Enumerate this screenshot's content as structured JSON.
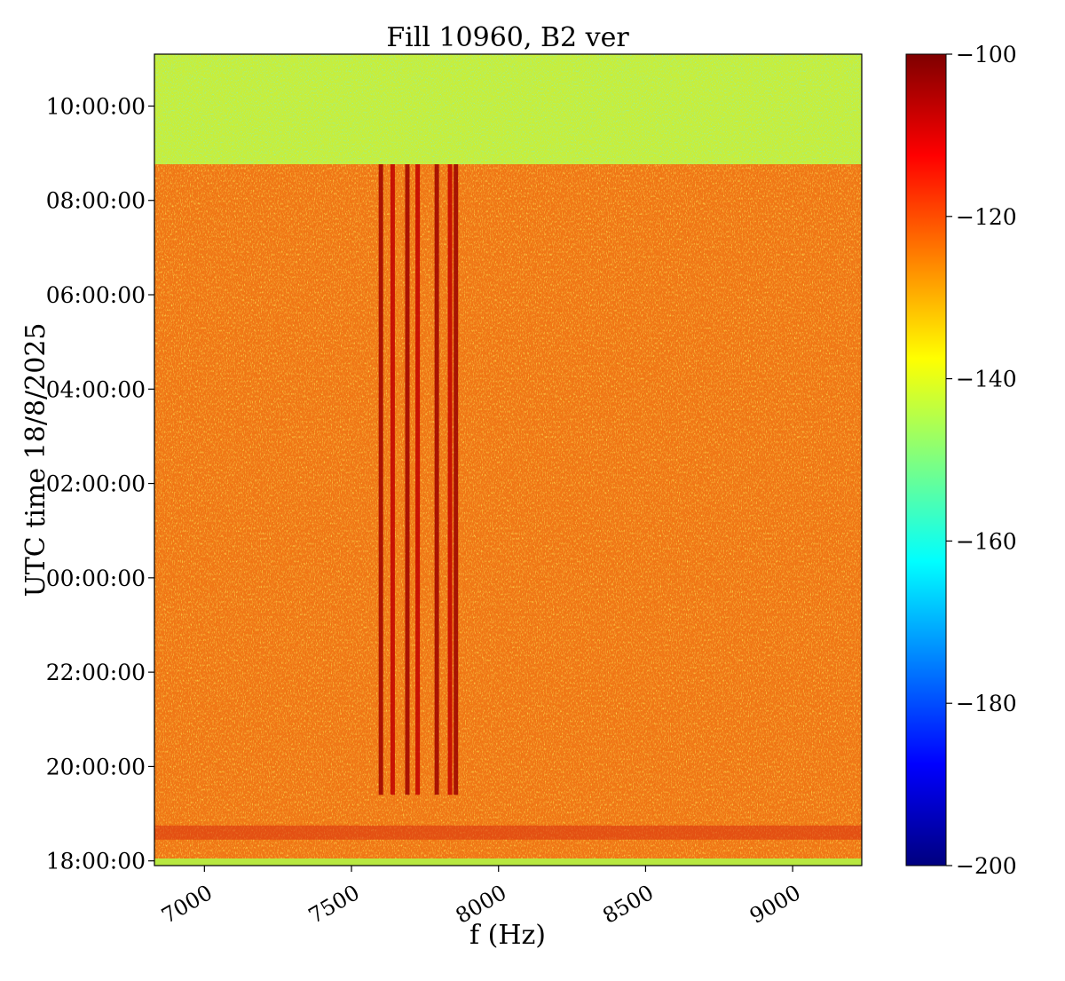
{
  "chart_data": {
    "type": "heatmap",
    "title": "Fill 10960, B2 ver",
    "xlabel": "f (Hz)",
    "ylabel": "UTC time 18/8/2025",
    "x_ticks": [
      7000,
      7500,
      8000,
      8500,
      9000
    ],
    "x_tick_labels": [
      "7000",
      "7500",
      "8000",
      "8500",
      "9000"
    ],
    "xlim": [
      6830,
      9235
    ],
    "y_tick_labels": [
      "18:00:00",
      "20:00:00",
      "22:00:00",
      "00:00:00",
      "02:00:00",
      "04:00:00",
      "06:00:00",
      "08:00:00",
      "10:00:00"
    ],
    "y_ticks_hours": [
      0,
      2,
      4,
      6,
      8,
      10,
      12,
      14,
      16
    ],
    "ylim_hours_since_18": [
      -0.1,
      17.1
    ],
    "colorbar": {
      "range": [
        -200,
        -100
      ],
      "ticks": [
        -100,
        -120,
        -140,
        -160,
        -180,
        -200
      ],
      "tick_labels": [
        "−100",
        "−120",
        "−140",
        "−160",
        "−180",
        "−200"
      ],
      "colormap": "jet"
    },
    "background_level": -122,
    "post_dump_level": -138,
    "dump_time": "08:48:00",
    "lines_hz": [
      7600,
      7640,
      7690,
      7725,
      7790,
      7835,
      7855
    ]
  }
}
